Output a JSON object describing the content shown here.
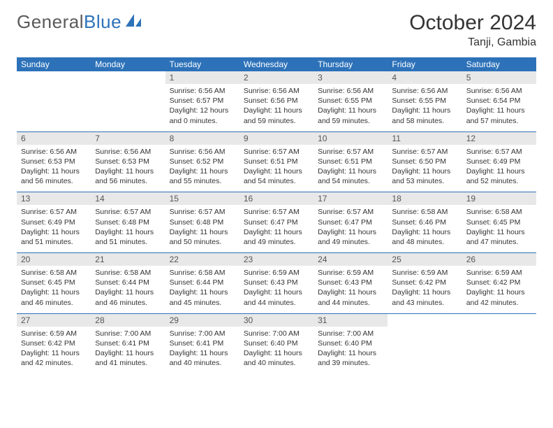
{
  "logo": {
    "text_gray": "General",
    "text_blue": "Blue"
  },
  "title": "October 2024",
  "location": "Tanji, Gambia",
  "day_headers": [
    "Sunday",
    "Monday",
    "Tuesday",
    "Wednesday",
    "Thursday",
    "Friday",
    "Saturday"
  ],
  "colors": {
    "header_bg": "#2d72b9",
    "header_fg": "#ffffff",
    "daynum_bg": "#e8e8e8",
    "text": "#333333",
    "rule": "#2d72b9"
  },
  "weeks": [
    [
      null,
      null,
      {
        "n": "1",
        "sr": "6:56 AM",
        "ss": "6:57 PM",
        "dl": "12 hours and 0 minutes."
      },
      {
        "n": "2",
        "sr": "6:56 AM",
        "ss": "6:56 PM",
        "dl": "11 hours and 59 minutes."
      },
      {
        "n": "3",
        "sr": "6:56 AM",
        "ss": "6:55 PM",
        "dl": "11 hours and 59 minutes."
      },
      {
        "n": "4",
        "sr": "6:56 AM",
        "ss": "6:55 PM",
        "dl": "11 hours and 58 minutes."
      },
      {
        "n": "5",
        "sr": "6:56 AM",
        "ss": "6:54 PM",
        "dl": "11 hours and 57 minutes."
      }
    ],
    [
      {
        "n": "6",
        "sr": "6:56 AM",
        "ss": "6:53 PM",
        "dl": "11 hours and 56 minutes."
      },
      {
        "n": "7",
        "sr": "6:56 AM",
        "ss": "6:53 PM",
        "dl": "11 hours and 56 minutes."
      },
      {
        "n": "8",
        "sr": "6:56 AM",
        "ss": "6:52 PM",
        "dl": "11 hours and 55 minutes."
      },
      {
        "n": "9",
        "sr": "6:57 AM",
        "ss": "6:51 PM",
        "dl": "11 hours and 54 minutes."
      },
      {
        "n": "10",
        "sr": "6:57 AM",
        "ss": "6:51 PM",
        "dl": "11 hours and 54 minutes."
      },
      {
        "n": "11",
        "sr": "6:57 AM",
        "ss": "6:50 PM",
        "dl": "11 hours and 53 minutes."
      },
      {
        "n": "12",
        "sr": "6:57 AM",
        "ss": "6:49 PM",
        "dl": "11 hours and 52 minutes."
      }
    ],
    [
      {
        "n": "13",
        "sr": "6:57 AM",
        "ss": "6:49 PM",
        "dl": "11 hours and 51 minutes."
      },
      {
        "n": "14",
        "sr": "6:57 AM",
        "ss": "6:48 PM",
        "dl": "11 hours and 51 minutes."
      },
      {
        "n": "15",
        "sr": "6:57 AM",
        "ss": "6:48 PM",
        "dl": "11 hours and 50 minutes."
      },
      {
        "n": "16",
        "sr": "6:57 AM",
        "ss": "6:47 PM",
        "dl": "11 hours and 49 minutes."
      },
      {
        "n": "17",
        "sr": "6:57 AM",
        "ss": "6:47 PM",
        "dl": "11 hours and 49 minutes."
      },
      {
        "n": "18",
        "sr": "6:58 AM",
        "ss": "6:46 PM",
        "dl": "11 hours and 48 minutes."
      },
      {
        "n": "19",
        "sr": "6:58 AM",
        "ss": "6:45 PM",
        "dl": "11 hours and 47 minutes."
      }
    ],
    [
      {
        "n": "20",
        "sr": "6:58 AM",
        "ss": "6:45 PM",
        "dl": "11 hours and 46 minutes."
      },
      {
        "n": "21",
        "sr": "6:58 AM",
        "ss": "6:44 PM",
        "dl": "11 hours and 46 minutes."
      },
      {
        "n": "22",
        "sr": "6:58 AM",
        "ss": "6:44 PM",
        "dl": "11 hours and 45 minutes."
      },
      {
        "n": "23",
        "sr": "6:59 AM",
        "ss": "6:43 PM",
        "dl": "11 hours and 44 minutes."
      },
      {
        "n": "24",
        "sr": "6:59 AM",
        "ss": "6:43 PM",
        "dl": "11 hours and 44 minutes."
      },
      {
        "n": "25",
        "sr": "6:59 AM",
        "ss": "6:42 PM",
        "dl": "11 hours and 43 minutes."
      },
      {
        "n": "26",
        "sr": "6:59 AM",
        "ss": "6:42 PM",
        "dl": "11 hours and 42 minutes."
      }
    ],
    [
      {
        "n": "27",
        "sr": "6:59 AM",
        "ss": "6:42 PM",
        "dl": "11 hours and 42 minutes."
      },
      {
        "n": "28",
        "sr": "7:00 AM",
        "ss": "6:41 PM",
        "dl": "11 hours and 41 minutes."
      },
      {
        "n": "29",
        "sr": "7:00 AM",
        "ss": "6:41 PM",
        "dl": "11 hours and 40 minutes."
      },
      {
        "n": "30",
        "sr": "7:00 AM",
        "ss": "6:40 PM",
        "dl": "11 hours and 40 minutes."
      },
      {
        "n": "31",
        "sr": "7:00 AM",
        "ss": "6:40 PM",
        "dl": "11 hours and 39 minutes."
      },
      null,
      null
    ]
  ]
}
